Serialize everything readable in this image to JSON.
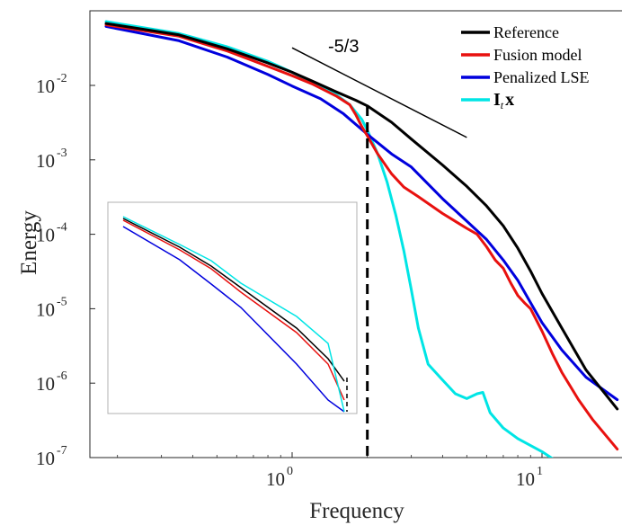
{
  "chart_data": {
    "type": "line",
    "title": "",
    "xlabel": "Frequency",
    "ylabel": "Energy",
    "xscale": "log",
    "yscale": "log",
    "xlim": [
      0.158,
      20
    ],
    "ylim": [
      1e-07,
      1
    ],
    "x_ticks": [
      {
        "base": "10",
        "exp": "0",
        "value": 1
      },
      {
        "base": "10",
        "exp": "1",
        "value": 10
      }
    ],
    "y_ticks": [
      {
        "base": "10",
        "exp": "-2",
        "value": 0.01
      },
      {
        "base": "10",
        "exp": "-3",
        "value": 0.001
      },
      {
        "base": "10",
        "exp": "-4",
        "value": 0.0001
      },
      {
        "base": "10",
        "exp": "-5",
        "value": 1e-05
      },
      {
        "base": "10",
        "exp": "-6",
        "value": 1e-06
      },
      {
        "base": "10",
        "exp": "-7",
        "value": 1e-07
      }
    ],
    "legend_position": "top-right",
    "series": [
      {
        "name": "Reference",
        "color": "#000000",
        "points": [
          [
            0.18,
            0.068
          ],
          [
            0.35,
            0.048
          ],
          [
            0.55,
            0.031
          ],
          [
            0.8,
            0.02
          ],
          [
            1.0,
            0.015
          ],
          [
            1.2,
            0.0115
          ],
          [
            1.5,
            0.0082
          ],
          [
            1.8,
            0.0063
          ],
          [
            2.0,
            0.0053
          ],
          [
            2.5,
            0.0032
          ],
          [
            3.0,
            0.0019
          ],
          [
            4.0,
            0.00085
          ],
          [
            5.0,
            0.00044
          ],
          [
            6.0,
            0.00024
          ],
          [
            7.0,
            0.00013
          ],
          [
            8.0,
            6.5e-05
          ],
          [
            9.0,
            3.2e-05
          ],
          [
            10.0,
            1.6e-05
          ],
          [
            12.0,
            5.5e-06
          ],
          [
            15.0,
            1.5e-06
          ],
          [
            20.0,
            4.5e-07
          ]
        ]
      },
      {
        "name": "Fusion model",
        "color": "#e8110f",
        "points": [
          [
            0.18,
            0.065
          ],
          [
            0.35,
            0.046
          ],
          [
            0.55,
            0.029
          ],
          [
            0.8,
            0.018
          ],
          [
            1.0,
            0.0135
          ],
          [
            1.2,
            0.0105
          ],
          [
            1.5,
            0.0072
          ],
          [
            1.7,
            0.0055
          ],
          [
            1.8,
            0.004
          ],
          [
            1.9,
            0.0028
          ],
          [
            2.0,
            0.0021
          ],
          [
            2.2,
            0.0012
          ],
          [
            2.5,
            0.00065
          ],
          [
            2.8,
            0.00043
          ],
          [
            3.2,
            0.00032
          ],
          [
            4.0,
            0.00019
          ],
          [
            5.0,
            0.00012
          ],
          [
            5.5,
            0.0001
          ],
          [
            6.0,
            6.8e-05
          ],
          [
            6.5,
            4.5e-05
          ],
          [
            7.0,
            3.5e-05
          ],
          [
            7.5,
            2.2e-05
          ],
          [
            8.0,
            1.5e-05
          ],
          [
            8.5,
            1.2e-05
          ],
          [
            9.0,
            1e-05
          ],
          [
            10.0,
            5e-06
          ],
          [
            11.0,
            2.5e-06
          ],
          [
            12.0,
            1.4e-06
          ],
          [
            14.0,
            6e-07
          ],
          [
            16.0,
            3.2e-07
          ],
          [
            20.0,
            1.3e-07
          ]
        ]
      },
      {
        "name": "Penalized LSE",
        "color": "#0000dd",
        "points": [
          [
            0.18,
            0.062
          ],
          [
            0.35,
            0.04
          ],
          [
            0.55,
            0.024
          ],
          [
            0.8,
            0.014
          ],
          [
            1.0,
            0.0098
          ],
          [
            1.3,
            0.0066
          ],
          [
            1.6,
            0.0042
          ],
          [
            2.0,
            0.0022
          ],
          [
            2.5,
            0.0012
          ],
          [
            3.0,
            0.0008
          ],
          [
            4.0,
            0.0003
          ],
          [
            5.0,
            0.00015
          ],
          [
            6.0,
            8.5e-05
          ],
          [
            7.0,
            4.5e-05
          ],
          [
            8.0,
            2.4e-05
          ],
          [
            9.0,
            1.2e-05
          ],
          [
            10.0,
            6.5e-06
          ],
          [
            12.0,
            2.8e-06
          ],
          [
            15.0,
            1.2e-06
          ],
          [
            20.0,
            6e-07
          ]
        ]
      },
      {
        "name": "I_t x",
        "color": "#00e5e5",
        "points": [
          [
            0.18,
            0.072
          ],
          [
            0.35,
            0.05
          ],
          [
            0.55,
            0.033
          ],
          [
            0.8,
            0.021
          ],
          [
            1.0,
            0.015
          ],
          [
            1.2,
            0.011
          ],
          [
            1.5,
            0.0075
          ],
          [
            1.7,
            0.0055
          ],
          [
            1.9,
            0.0035
          ],
          [
            2.0,
            0.0025
          ],
          [
            2.2,
            0.0012
          ],
          [
            2.4,
            0.0005
          ],
          [
            2.6,
            0.00018
          ],
          [
            2.8,
            6e-05
          ],
          [
            3.0,
            1.8e-05
          ],
          [
            3.2,
            5.5e-06
          ],
          [
            3.5,
            1.8e-06
          ],
          [
            4.0,
            1.1e-06
          ],
          [
            4.5,
            7.2e-07
          ],
          [
            5.0,
            6.2e-07
          ],
          [
            5.5,
            7.2e-07
          ],
          [
            5.8,
            7.5e-07
          ],
          [
            6.2,
            4e-07
          ],
          [
            7.0,
            2.5e-07
          ],
          [
            8.0,
            1.8e-07
          ],
          [
            10.0,
            1.2e-07
          ],
          [
            12.0,
            8e-08
          ],
          [
            13.0,
            7e-08
          ]
        ]
      }
    ],
    "annotations": [
      {
        "type": "slope-line",
        "label": "-5/3",
        "x": [
          1.0,
          5.0
        ],
        "y": [
          0.032,
          0.002
        ]
      },
      {
        "type": "vertical-dashed",
        "x": 2.0
      }
    ],
    "inset": {
      "series": [
        {
          "name": "Reference",
          "color": "#000000",
          "values": [
            0.0116,
            0.0094,
            0.0079,
            0.0059,
            0.0052,
            0.0034,
            0.0029
          ]
        },
        {
          "name": "Fusion model",
          "color": "#e8110f",
          "values": [
            0.0113,
            0.009,
            0.0076,
            0.006,
            0.0048,
            0.0035,
            0.0021
          ]
        },
        {
          "name": "Penalized LSE",
          "color": "#0000dd",
          "values": [
            0.0109,
            0.0087,
            0.0064,
            0.0043,
            0.0038,
            0.0034,
            0.0021
          ]
        },
        {
          "name": "I_t x",
          "color": "#00e5e5",
          "values": [
            0.0119,
            0.0096,
            0.008,
            0.0064,
            0.0052,
            0.0041,
            0.0021
          ]
        }
      ]
    }
  }
}
